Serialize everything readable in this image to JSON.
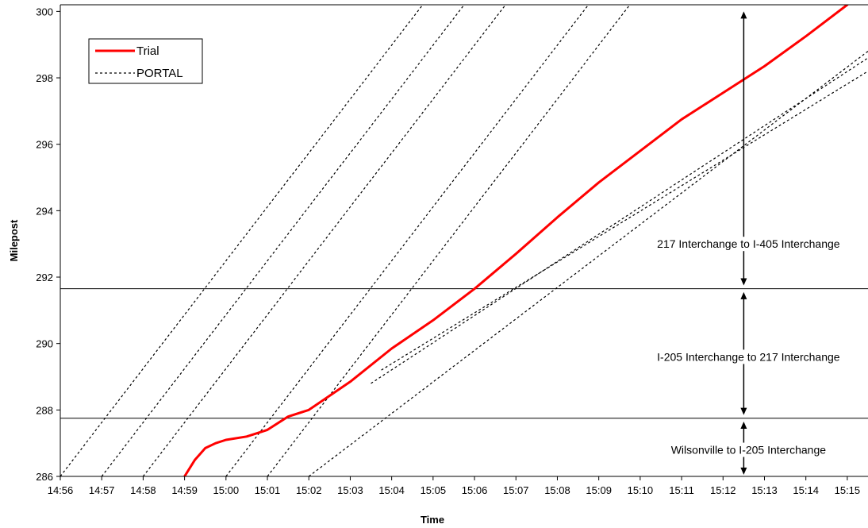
{
  "chart_data": {
    "type": "line",
    "xlabel": "Time",
    "ylabel": "Milepost",
    "x_ticks": [
      "14:56",
      "14:57",
      "14:58",
      "14:59",
      "15:00",
      "15:01",
      "15:02",
      "15:03",
      "15:04",
      "15:05",
      "15:06",
      "15:07",
      "15:08",
      "15:09",
      "15:10",
      "15:11",
      "15:12",
      "15:13",
      "15:14",
      "15:15"
    ],
    "xlim": [
      "14:56",
      "15:15:30"
    ],
    "ylim": [
      286,
      300.2
    ],
    "y_ticks": [
      286,
      288,
      290,
      292,
      294,
      296,
      298,
      300
    ],
    "grid": false,
    "legend": {
      "placement": "top-left",
      "entries": [
        {
          "label": "Trial",
          "style": "solid",
          "color": "#ff0000"
        },
        {
          "label": "PORTAL",
          "style": "dotted",
          "color": "#000000"
        }
      ]
    },
    "series": [
      {
        "name": "Trial",
        "color": "#ff0000",
        "style": "solid",
        "points": [
          [
            "14:59:00",
            286.0
          ],
          [
            "14:59:15",
            286.5
          ],
          [
            "14:59:30",
            286.85
          ],
          [
            "14:59:45",
            287.0
          ],
          [
            "15:00:00",
            287.1
          ],
          [
            "15:00:30",
            287.2
          ],
          [
            "15:01:00",
            287.4
          ],
          [
            "15:01:30",
            287.8
          ],
          [
            "15:02:00",
            288.0
          ],
          [
            "15:03:00",
            288.85
          ],
          [
            "15:04:00",
            289.85
          ],
          [
            "15:05:00",
            290.7
          ],
          [
            "15:06:00",
            291.65
          ],
          [
            "15:07:00",
            292.7
          ],
          [
            "15:08:00",
            293.8
          ],
          [
            "15:09:00",
            294.85
          ],
          [
            "15:10:00",
            295.8
          ],
          [
            "15:11:00",
            296.75
          ],
          [
            "15:12:00",
            297.55
          ],
          [
            "15:13:00",
            298.35
          ],
          [
            "15:14:00",
            299.25
          ],
          [
            "15:15:00",
            300.2
          ]
        ]
      },
      {
        "name": "PORTAL",
        "color": "#000000",
        "style": "dotted",
        "lines": [
          [
            [
              "14:56:00",
              286.0
            ],
            [
              "15:04:45",
              300.2
            ]
          ],
          [
            [
              "14:57:00",
              286.0
            ],
            [
              "15:05:45",
              300.2
            ]
          ],
          [
            [
              "14:58:00",
              286.0
            ],
            [
              "15:06:45",
              300.2
            ]
          ],
          [
            [
              "15:00:00",
              286.0
            ],
            [
              "15:08:45",
              300.2
            ]
          ],
          [
            [
              "15:01:00",
              286.0
            ],
            [
              "15:09:45",
              300.2
            ]
          ],
          [
            [
              "15:02:00",
              286.0
            ],
            [
              "15:15:30",
              298.8
            ]
          ],
          [
            [
              "15:03:30",
              288.8
            ],
            [
              "15:15:30",
              298.6
            ]
          ],
          [
            [
              "15:03:45",
              289.2
            ],
            [
              "15:15:30",
              298.2
            ]
          ]
        ]
      }
    ],
    "reference_lines": [
      {
        "y": 291.65,
        "style": "solid",
        "color": "#000000"
      },
      {
        "y": 287.75,
        "style": "solid",
        "color": "#000000"
      }
    ],
    "annotations": [
      {
        "text": "217 Interchange to I-405 Interchange",
        "x": "15:12:30",
        "y_from": 300.0,
        "y_to": 291.75,
        "label_y": 293.0
      },
      {
        "text": "I-205 Interchange to 217 Interchange",
        "x": "15:12:30",
        "y_from": 291.55,
        "y_to": 287.85,
        "label_y": 289.6
      },
      {
        "text": "Wilsonville to I-205 Interchange",
        "x": "15:12:30",
        "y_from": 287.65,
        "y_to": 286.05,
        "label_y": 286.8
      }
    ]
  }
}
